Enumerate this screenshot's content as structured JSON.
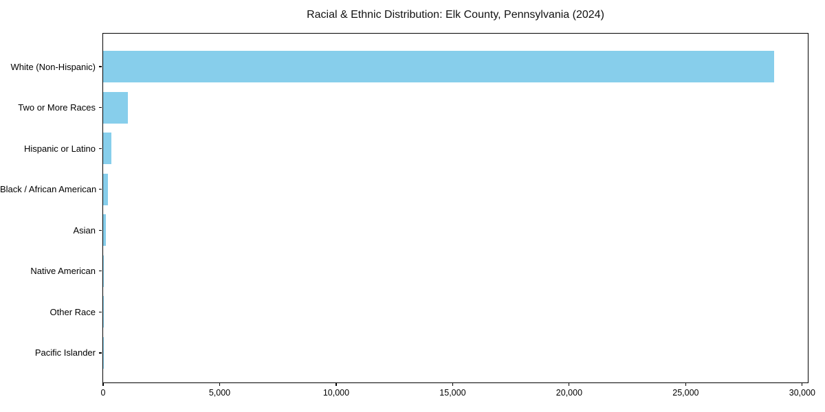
{
  "figure": {
    "background": "#ffffff",
    "text_color": "#111111"
  },
  "chart_data": {
    "type": "bar",
    "orientation": "horizontal",
    "title": "Racial & Ethnic Distribution: Elk County, Pennsylvania (2024)",
    "categories": [
      "White (Non-Hispanic)",
      "Two or More Races",
      "Hispanic or Latino",
      "Black / African American",
      "Asian",
      "Native American",
      "Other Race",
      "Pacific Islander"
    ],
    "values": [
      28800,
      1050,
      350,
      200,
      130,
      35,
      20,
      5
    ],
    "xlabel": "",
    "ylabel": "",
    "xlim": [
      0,
      30240
    ],
    "xticks": [
      0,
      5000,
      10000,
      15000,
      20000,
      25000,
      30000
    ],
    "xtick_labels": [
      "0",
      "5,000",
      "10,000",
      "15,000",
      "20,000",
      "25,000",
      "30,000"
    ],
    "bar_color": "#87CEEB",
    "grid": false,
    "legend": "none",
    "spines": "box"
  }
}
